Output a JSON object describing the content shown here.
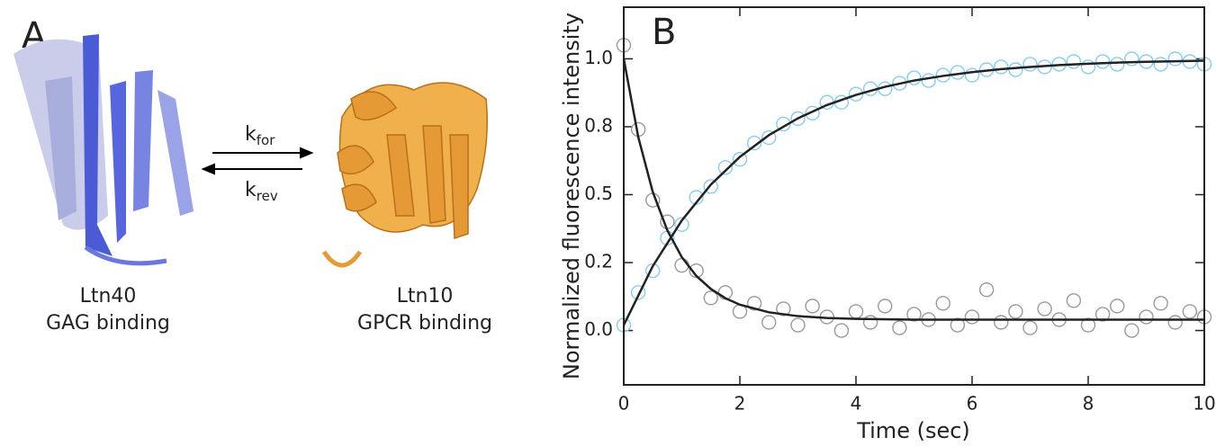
{
  "panel_a": {
    "label": "A",
    "left_protein": {
      "name": "Ltn40",
      "role": "GAG binding"
    },
    "right_protein": {
      "name": "Ltn10",
      "role": "GPCR binding"
    },
    "forward_rate": {
      "symbol": "k",
      "subscript": "for"
    },
    "reverse_rate": {
      "symbol": "k",
      "subscript": "rev"
    }
  },
  "chart_data": {
    "type": "scatter",
    "panel_label": "B",
    "x_label": "Time (sec)",
    "y_label": "Normalized fluorescence intensity",
    "xlim": [
      0,
      10
    ],
    "xticks": [
      0,
      2,
      4,
      6,
      8,
      10
    ],
    "ylim": [
      -0.2,
      1.19
    ],
    "yticks": [
      {
        "value": 0,
        "label": "0.0"
      },
      {
        "value": 0.25,
        "label": "0.2"
      },
      {
        "value": 0.5,
        "label": "0.5"
      },
      {
        "value": 0.75,
        "label": "0.8"
      },
      {
        "value": 1,
        "label": "1.0"
      }
    ],
    "series": [
      {
        "style": "markers",
        "color": "#86cdf0",
        "x": [
          0,
          0.25,
          0.5,
          0.75,
          1,
          1.25,
          1.5,
          1.75,
          2,
          2.25,
          2.5,
          2.75,
          3,
          3.25,
          3.5,
          3.75,
          4,
          4.25,
          4.5,
          4.75,
          5,
          5.25,
          5.5,
          5.75,
          6,
          6.25,
          6.5,
          6.75,
          7,
          7.25,
          7.5,
          7.75,
          8,
          8.25,
          8.5,
          8.75,
          9,
          9.25,
          9.5,
          9.75,
          10
        ],
        "values": [
          0.02,
          0.14,
          0.22,
          0.34,
          0.39,
          0.49,
          0.53,
          0.6,
          0.63,
          0.69,
          0.71,
          0.76,
          0.78,
          0.8,
          0.84,
          0.84,
          0.87,
          0.89,
          0.89,
          0.91,
          0.93,
          0.92,
          0.94,
          0.95,
          0.94,
          0.96,
          0.97,
          0.96,
          0.98,
          0.97,
          0.98,
          0.99,
          0.97,
          0.99,
          0.98,
          1.0,
          0.99,
          0.98,
          1.0,
          0.99,
          0.98
        ]
      },
      {
        "style": "markers",
        "color": "#9a9a9a",
        "x": [
          0,
          0.25,
          0.5,
          0.75,
          1,
          1.25,
          1.5,
          1.75,
          2,
          2.25,
          2.5,
          2.75,
          3,
          3.25,
          3.5,
          3.75,
          4,
          4.25,
          4.5,
          4.75,
          5,
          5.25,
          5.5,
          5.75,
          6,
          6.25,
          6.5,
          6.75,
          7,
          7.25,
          7.5,
          7.75,
          8,
          8.25,
          8.5,
          8.75,
          9,
          9.25,
          9.5,
          9.75,
          10
        ],
        "values": [
          1.05,
          0.74,
          0.48,
          0.4,
          0.24,
          0.22,
          0.12,
          0.14,
          0.07,
          0.1,
          0.03,
          0.08,
          0.02,
          0.09,
          0.05,
          0.0,
          0.07,
          0.03,
          0.09,
          0.01,
          0.06,
          0.04,
          0.1,
          0.02,
          0.05,
          0.15,
          0.03,
          0.07,
          0.01,
          0.08,
          0.04,
          0.11,
          0.02,
          0.06,
          0.09,
          0.0,
          0.05,
          0.1,
          0.03,
          0.07,
          0.05
        ]
      },
      {
        "style": "line",
        "color": "#222222",
        "x": [
          0,
          0.5,
          1,
          1.5,
          2,
          2.5,
          3,
          3.5,
          4,
          4.5,
          5,
          5.5,
          6,
          6.5,
          7,
          7.5,
          8,
          8.5,
          9,
          9.5,
          10
        ],
        "values": [
          0.02,
          0.237,
          0.405,
          0.537,
          0.639,
          0.719,
          0.781,
          0.83,
          0.867,
          0.897,
          0.92,
          0.937,
          0.951,
          0.962,
          0.97,
          0.977,
          0.982,
          0.986,
          0.989,
          0.991,
          0.993
        ]
      },
      {
        "style": "line",
        "color": "#222222",
        "x": [
          0,
          0.25,
          0.5,
          0.75,
          1,
          1.25,
          1.5,
          1.75,
          2,
          2.5,
          3,
          3.5,
          4,
          5,
          6,
          7,
          8,
          9,
          10
        ],
        "values": [
          1.0,
          0.712,
          0.51,
          0.369,
          0.27,
          0.201,
          0.153,
          0.119,
          0.095,
          0.067,
          0.053,
          0.046,
          0.043,
          0.04,
          0.04,
          0.04,
          0.04,
          0.04,
          0.04
        ]
      }
    ]
  }
}
